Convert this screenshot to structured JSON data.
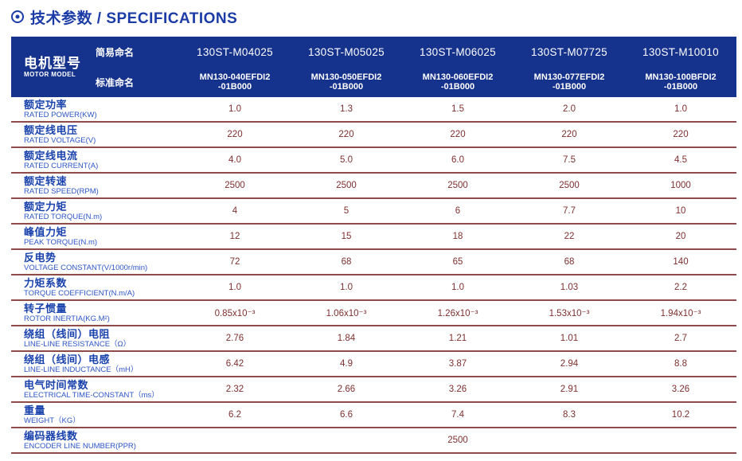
{
  "title": {
    "text": "技术参数 / SPECIFICATIONS"
  },
  "colors": {
    "title_blue": "#1b3ba6",
    "header_bg": "#15328c",
    "label_blue": "#1a43ad",
    "label_blue_light": "#2d56c6",
    "value_maroon": "#7d2f2f",
    "line_maroon": "#8f4a4a"
  },
  "header": {
    "motor_model_zh": "电机型号",
    "motor_model_en": "MOTOR MODEL",
    "simple_name_label": "简易命名",
    "standard_name_label": "标准命名",
    "columns": [
      {
        "simple": "130ST-M04025",
        "standard_line1": "MN130-040EFDI2",
        "standard_line2": "-01B000"
      },
      {
        "simple": "130ST-M05025",
        "standard_line1": "MN130-050EFDI2",
        "standard_line2": "-01B000"
      },
      {
        "simple": "130ST-M06025",
        "standard_line1": "MN130-060EFDI2",
        "standard_line2": "-01B000"
      },
      {
        "simple": "130ST-M07725",
        "standard_line1": "MN130-077EFDI2",
        "standard_line2": "-01B000"
      },
      {
        "simple": "130ST-M10010",
        "standard_line1": "MN130-100BFDI2",
        "standard_line2": "-01B000"
      }
    ]
  },
  "rows": [
    {
      "zh": "额定功率",
      "en": "RATED POWER(KW)",
      "values": [
        "1.0",
        "1.3",
        "1.5",
        "2.0",
        "1.0"
      ]
    },
    {
      "zh": "额定线电压",
      "en": "RATED VOLTAGE(V)",
      "values": [
        "220",
        "220",
        "220",
        "220",
        "220"
      ]
    },
    {
      "zh": "额定线电流",
      "en": "RATED CURRENT(A)",
      "values": [
        "4.0",
        "5.0",
        "6.0",
        "7.5",
        "4.5"
      ]
    },
    {
      "zh": "额定转速",
      "en": "RATED SPEED(RPM)",
      "values": [
        "2500",
        "2500",
        "2500",
        "2500",
        "1000"
      ]
    },
    {
      "zh": "额定力矩",
      "en": "RATED TORQUE(N.m)",
      "values": [
        "4",
        "5",
        "6",
        "7.7",
        "10"
      ]
    },
    {
      "zh": "峰值力矩",
      "en": "PEAK TORQUE(N.m)",
      "values": [
        "12",
        "15",
        "18",
        "22",
        "20"
      ]
    },
    {
      "zh": "反电势",
      "en": "VOLTAGE CONSTANT(V/1000r/min)",
      "values": [
        "72",
        "68",
        "65",
        "68",
        "140"
      ]
    },
    {
      "zh": "力矩系数",
      "en": "TORQUE COEFFICIENT(N.m/A)",
      "values": [
        "1.0",
        "1.0",
        "1.0",
        "1.03",
        "2.2"
      ]
    },
    {
      "zh": "转子惯量",
      "en": "ROTOR INERTIA(KG.M²)",
      "values": [
        "0.85x10⁻³",
        "1.06x10⁻³",
        "1.26x10⁻³",
        "1.53x10⁻³",
        "1.94x10⁻³"
      ]
    },
    {
      "zh": "绕组（线间）电阻",
      "en": "LINE-LINE RESISTANCE（Ω）",
      "values": [
        "2.76",
        "1.84",
        "1.21",
        "1.01",
        "2.7"
      ]
    },
    {
      "zh": "绕组（线间）电感",
      "en": "LINE-LINE INDUCTANCE（mH）",
      "values": [
        "6.42",
        "4.9",
        "3.87",
        "2.94",
        "8.8"
      ]
    },
    {
      "zh": "电气时间常数",
      "en": "ELECTRICAL TIME-CONSTANT（ms）",
      "values": [
        "2.32",
        "2.66",
        "3.26",
        "2.91",
        "3.26"
      ]
    },
    {
      "zh": "重量",
      "en": "WEIGHT（KG）",
      "values": [
        "6.2",
        "6.6",
        "7.4",
        "8.3",
        "10.2"
      ]
    },
    {
      "zh": "编码器线数",
      "en": "ENCODER LINE NUMBER(PPR)",
      "span_value": "2500"
    }
  ]
}
